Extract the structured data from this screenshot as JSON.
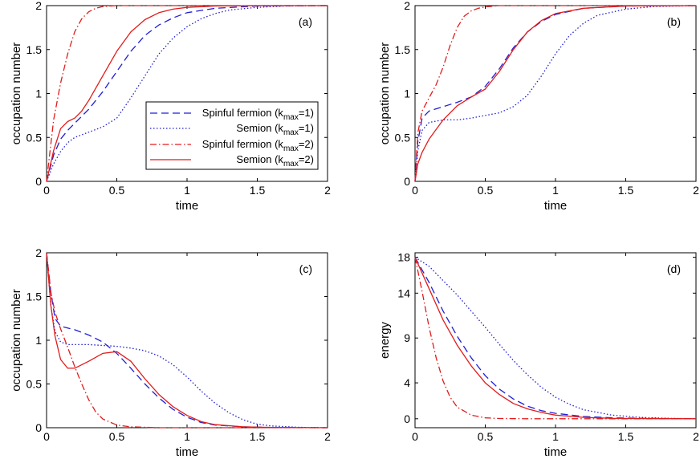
{
  "chart_data": [
    {
      "type": "line",
      "panel_label": "(a)",
      "xlabel": "time",
      "ylabel": "occupation number",
      "xlim": [
        0,
        2
      ],
      "ylim": [
        0,
        2
      ],
      "xticks": [
        0,
        0.5,
        1,
        1.5,
        2
      ],
      "xtick_labels": [
        "0",
        "0.5",
        "1",
        "1.5",
        "2"
      ],
      "yticks": [
        0,
        0.5,
        1,
        1.5,
        2
      ],
      "ytick_labels": [
        "0",
        "0.5",
        "1",
        "1.5",
        "2"
      ],
      "legend": "inside-right",
      "series": [
        {
          "name": "Spinful fermion (k_max=1)",
          "x": [
            0,
            0.05,
            0.1,
            0.15,
            0.2,
            0.3,
            0.4,
            0.5,
            0.6,
            0.7,
            0.8,
            0.9,
            1.0,
            1.2,
            1.5,
            2.0
          ],
          "y": [
            0,
            0.3,
            0.48,
            0.58,
            0.66,
            0.82,
            1.02,
            1.25,
            1.48,
            1.66,
            1.78,
            1.86,
            1.92,
            1.97,
            1.995,
            2.0
          ]
        },
        {
          "name": "Semion (k_max=1)",
          "x": [
            0,
            0.05,
            0.1,
            0.15,
            0.2,
            0.3,
            0.4,
            0.5,
            0.6,
            0.7,
            0.8,
            0.9,
            1.0,
            1.1,
            1.2,
            1.3,
            1.5,
            1.7,
            2.0
          ],
          "y": [
            0,
            0.2,
            0.34,
            0.44,
            0.5,
            0.56,
            0.62,
            0.72,
            0.95,
            1.2,
            1.45,
            1.63,
            1.76,
            1.85,
            1.91,
            1.95,
            1.98,
            1.995,
            2.0
          ]
        },
        {
          "name": "Spinful fermion (k_max=2)",
          "x": [
            0,
            0.05,
            0.1,
            0.15,
            0.2,
            0.25,
            0.3,
            0.35,
            0.4,
            0.5,
            0.6,
            2.0
          ],
          "y": [
            0,
            0.7,
            1.12,
            1.45,
            1.7,
            1.85,
            1.93,
            1.97,
            1.99,
            2.0,
            2.0,
            2.0
          ]
        },
        {
          "name": "Semion (k_max=2)",
          "x": [
            0,
            0.05,
            0.1,
            0.15,
            0.2,
            0.25,
            0.3,
            0.4,
            0.5,
            0.6,
            0.7,
            0.8,
            0.9,
            1.0,
            1.2,
            1.5,
            2.0
          ],
          "y": [
            0,
            0.35,
            0.6,
            0.68,
            0.72,
            0.8,
            0.92,
            1.2,
            1.48,
            1.7,
            1.84,
            1.92,
            1.96,
            1.98,
            1.995,
            2.0,
            2.0
          ]
        }
      ]
    },
    {
      "type": "line",
      "panel_label": "(b)",
      "xlabel": "time",
      "ylabel": "occupation number",
      "xlim": [
        0,
        2
      ],
      "ylim": [
        0,
        2
      ],
      "xticks": [
        0,
        0.5,
        1,
        1.5,
        2
      ],
      "xtick_labels": [
        "0",
        "0.5",
        "1",
        "1.5",
        "2"
      ],
      "yticks": [
        0,
        0.5,
        1,
        1.5,
        2
      ],
      "ytick_labels": [
        "0",
        "0.5",
        "1",
        "1.5",
        "2"
      ],
      "series": [
        {
          "name": "Spinful fermion (k_max=1)",
          "x": [
            0,
            0.02,
            0.05,
            0.1,
            0.2,
            0.3,
            0.4,
            0.5,
            0.6,
            0.7,
            0.8,
            0.9,
            1.0,
            1.2,
            1.5,
            2.0
          ],
          "y": [
            0,
            0.45,
            0.72,
            0.8,
            0.85,
            0.9,
            0.96,
            1.08,
            1.28,
            1.52,
            1.7,
            1.82,
            1.9,
            1.97,
            1.995,
            2.0
          ]
        },
        {
          "name": "Semion (k_max=1)",
          "x": [
            0,
            0.02,
            0.05,
            0.1,
            0.2,
            0.3,
            0.4,
            0.5,
            0.6,
            0.7,
            0.8,
            0.9,
            1.0,
            1.1,
            1.2,
            1.3,
            1.5,
            1.7,
            2.0
          ],
          "y": [
            0,
            0.35,
            0.58,
            0.67,
            0.7,
            0.7,
            0.72,
            0.75,
            0.78,
            0.85,
            0.98,
            1.2,
            1.45,
            1.66,
            1.8,
            1.89,
            1.96,
            1.99,
            2.0
          ]
        },
        {
          "name": "Spinful fermion (k_max=2)",
          "x": [
            0,
            0.02,
            0.05,
            0.1,
            0.15,
            0.2,
            0.25,
            0.3,
            0.35,
            0.4,
            0.45,
            0.5,
            0.6,
            0.8,
            2.0
          ],
          "y": [
            0,
            0.55,
            0.8,
            0.95,
            1.1,
            1.3,
            1.55,
            1.75,
            1.88,
            1.94,
            1.97,
            1.985,
            2.0,
            2.0,
            2.0
          ]
        },
        {
          "name": "Semion (k_max=2)",
          "x": [
            0,
            0.02,
            0.05,
            0.1,
            0.2,
            0.3,
            0.4,
            0.5,
            0.6,
            0.7,
            0.8,
            0.9,
            1.0,
            1.2,
            1.5,
            2.0
          ],
          "y": [
            0,
            0.2,
            0.33,
            0.48,
            0.7,
            0.86,
            0.96,
            1.05,
            1.25,
            1.5,
            1.7,
            1.83,
            1.91,
            1.97,
            1.995,
            2.0
          ]
        }
      ]
    },
    {
      "type": "line",
      "panel_label": "(c)",
      "xlabel": "time",
      "ylabel": "occupation number",
      "xlim": [
        0,
        2
      ],
      "ylim": [
        0,
        2
      ],
      "xticks": [
        0,
        0.5,
        1,
        1.5,
        2
      ],
      "xtick_labels": [
        "0",
        "0.5",
        "1",
        "1.5",
        "2"
      ],
      "yticks": [
        0,
        0.5,
        1,
        1.5,
        2
      ],
      "ytick_labels": [
        "0",
        "0.5",
        "1",
        "1.5",
        "2"
      ],
      "series": [
        {
          "name": "Spinful fermion (k_max=1)",
          "x": [
            0,
            0.03,
            0.06,
            0.1,
            0.2,
            0.3,
            0.4,
            0.5,
            0.6,
            0.7,
            0.8,
            0.9,
            1.0,
            1.1,
            1.2,
            1.4,
            1.6,
            2.0
          ],
          "y": [
            2.0,
            1.55,
            1.25,
            1.16,
            1.12,
            1.06,
            0.98,
            0.85,
            0.68,
            0.5,
            0.34,
            0.21,
            0.12,
            0.06,
            0.03,
            0.01,
            0.003,
            0.0
          ]
        },
        {
          "name": "Semion (k_max=1)",
          "x": [
            0,
            0.03,
            0.06,
            0.1,
            0.15,
            0.2,
            0.3,
            0.4,
            0.5,
            0.6,
            0.7,
            0.8,
            0.9,
            1.0,
            1.1,
            1.2,
            1.3,
            1.4,
            1.5,
            1.6,
            1.8,
            2.0
          ],
          "y": [
            2.0,
            1.4,
            1.1,
            0.98,
            0.95,
            0.95,
            0.95,
            0.94,
            0.93,
            0.91,
            0.88,
            0.82,
            0.72,
            0.58,
            0.42,
            0.28,
            0.17,
            0.09,
            0.04,
            0.02,
            0.005,
            0.0
          ]
        },
        {
          "name": "Spinful fermion (k_max=2)",
          "x": [
            0,
            0.03,
            0.06,
            0.1,
            0.15,
            0.2,
            0.25,
            0.3,
            0.35,
            0.4,
            0.5,
            0.6,
            0.8,
            2.0
          ],
          "y": [
            2.0,
            1.55,
            1.32,
            1.13,
            0.92,
            0.7,
            0.5,
            0.32,
            0.18,
            0.1,
            0.03,
            0.01,
            0.0,
            0.0
          ]
        },
        {
          "name": "Semion (k_max=2)",
          "x": [
            0,
            0.03,
            0.06,
            0.1,
            0.15,
            0.2,
            0.3,
            0.4,
            0.5,
            0.6,
            0.7,
            0.8,
            0.9,
            1.0,
            1.1,
            1.2,
            1.4,
            1.6,
            2.0
          ],
          "y": [
            2.0,
            1.4,
            1.05,
            0.78,
            0.68,
            0.68,
            0.76,
            0.85,
            0.87,
            0.76,
            0.56,
            0.38,
            0.24,
            0.14,
            0.07,
            0.035,
            0.01,
            0.003,
            0.0
          ]
        }
      ]
    },
    {
      "type": "line",
      "panel_label": "(d)",
      "xlabel": "time",
      "ylabel": "energy",
      "xlim": [
        0,
        2
      ],
      "ylim": [
        -1,
        18.5
      ],
      "xticks": [
        0,
        0.5,
        1,
        1.5,
        2
      ],
      "xtick_labels": [
        "0",
        "0.5",
        "1",
        "1.5",
        "2"
      ],
      "yticks": [
        0,
        4,
        9,
        14,
        18
      ],
      "ytick_labels": [
        "0",
        "4",
        "9",
        "14",
        "18"
      ],
      "series": [
        {
          "name": "Spinful fermion (k_max=1)",
          "x": [
            0,
            0.1,
            0.2,
            0.3,
            0.4,
            0.5,
            0.6,
            0.7,
            0.8,
            0.9,
            1.0,
            1.2,
            1.4,
            1.6,
            2.0
          ],
          "y": [
            18,
            15.2,
            12.0,
            9.2,
            6.8,
            4.8,
            3.3,
            2.2,
            1.4,
            0.9,
            0.6,
            0.25,
            0.1,
            0.05,
            0.0
          ]
        },
        {
          "name": "Semion (k_max=1)",
          "x": [
            0,
            0.1,
            0.2,
            0.3,
            0.4,
            0.5,
            0.6,
            0.7,
            0.8,
            0.9,
            1.0,
            1.1,
            1.2,
            1.4,
            1.6,
            1.8,
            2.0
          ],
          "y": [
            18,
            17.0,
            15.4,
            13.8,
            12.0,
            10.2,
            8.3,
            6.5,
            4.9,
            3.5,
            2.4,
            1.6,
            1.0,
            0.4,
            0.15,
            0.05,
            0.0
          ]
        },
        {
          "name": "Spinful fermion (k_max=2)",
          "x": [
            0,
            0.05,
            0.1,
            0.15,
            0.2,
            0.25,
            0.3,
            0.4,
            0.5,
            0.6,
            0.8,
            2.0
          ],
          "y": [
            18,
            14.2,
            10.2,
            6.8,
            4.2,
            2.4,
            1.3,
            0.4,
            0.1,
            0.03,
            0.0,
            0.0
          ]
        },
        {
          "name": "Semion (k_max=2)",
          "x": [
            0,
            0.1,
            0.2,
            0.3,
            0.4,
            0.5,
            0.6,
            0.7,
            0.8,
            0.9,
            1.0,
            1.2,
            1.4,
            1.6,
            2.0
          ],
          "y": [
            18,
            14.5,
            11.0,
            8.2,
            5.9,
            4.0,
            2.7,
            1.7,
            1.1,
            0.7,
            0.4,
            0.15,
            0.05,
            0.02,
            0.0
          ]
        }
      ]
    }
  ],
  "legend": {
    "entries": [
      {
        "base": "Spinful fermion (k",
        "sub": "max",
        "tail": "=1)"
      },
      {
        "base": "Semion (k",
        "sub": "max",
        "tail": "=1)"
      },
      {
        "base": "Spinful fermion (k",
        "sub": "max",
        "tail": "=2)"
      },
      {
        "base": "Semion (k",
        "sub": "max",
        "tail": "=2)"
      }
    ]
  },
  "styles": {
    "series_colors": [
      "#1f1fd6",
      "#1f1fd6",
      "#e21b1b",
      "#e21b1b"
    ],
    "series_dash": [
      "9,5",
      "1.5,2.5",
      "8,3,1.5,3",
      ""
    ]
  }
}
